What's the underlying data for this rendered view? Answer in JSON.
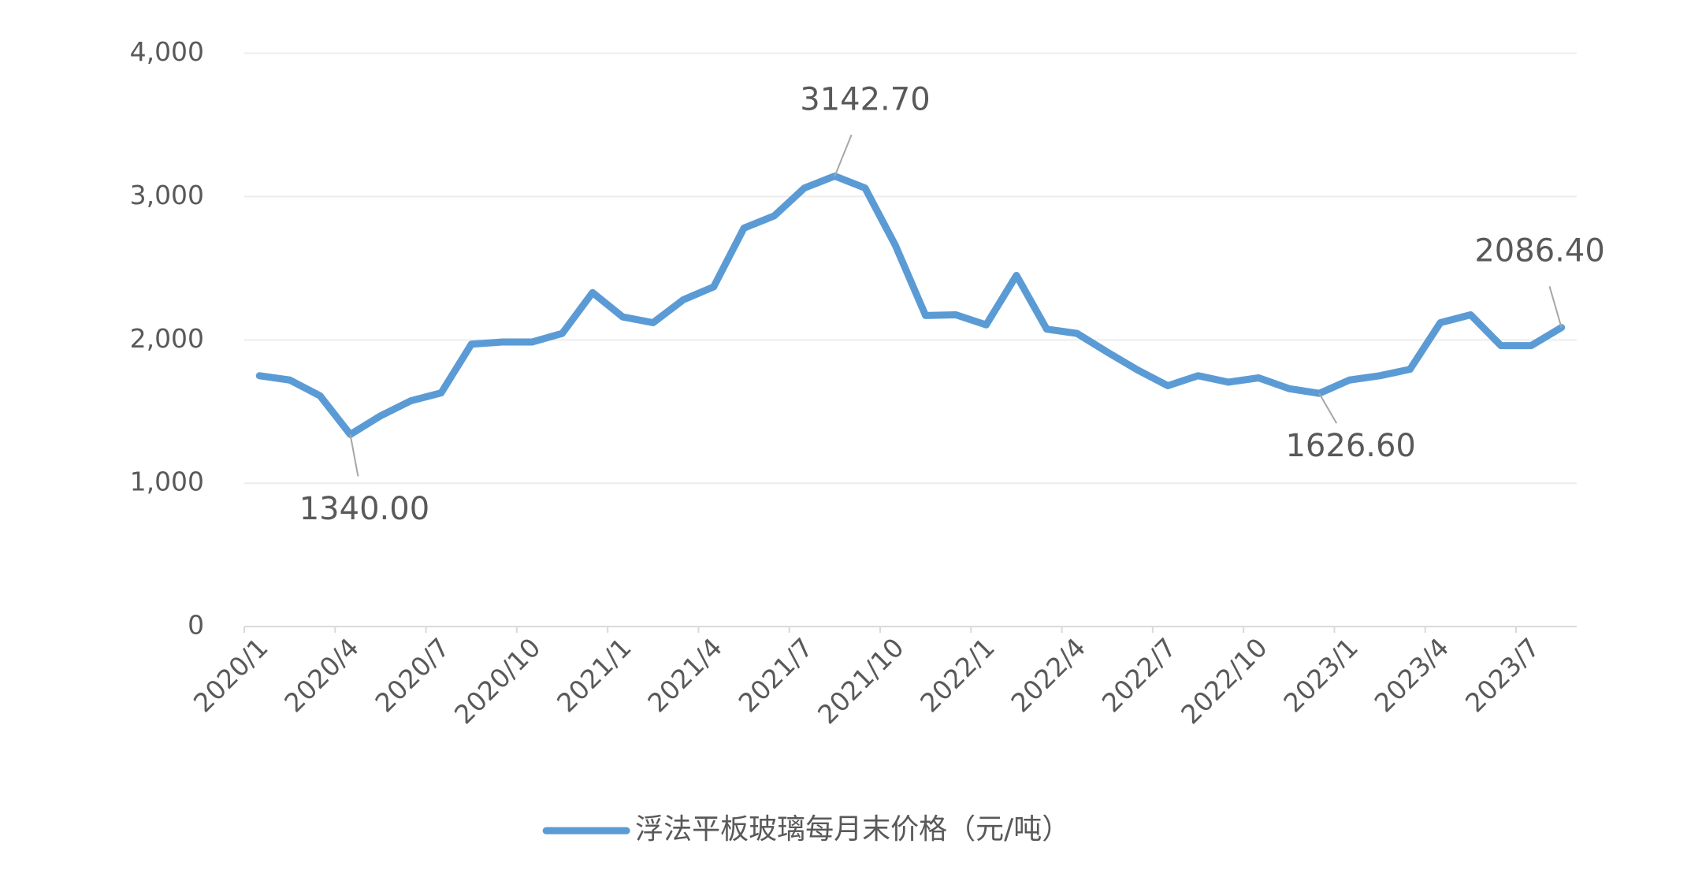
{
  "chart_data": {
    "type": "line",
    "categories": [
      "2020/1",
      null,
      null,
      "2020/4",
      null,
      null,
      "2020/7",
      null,
      null,
      "2020/10",
      null,
      null,
      "2021/1",
      null,
      null,
      "2021/4",
      null,
      null,
      "2021/7",
      null,
      null,
      "2021/10",
      null,
      null,
      "2022/1",
      null,
      null,
      "2022/4",
      null,
      null,
      "2022/7",
      null,
      null,
      "2022/10",
      null,
      null,
      "2023/1",
      null,
      null,
      "2023/4",
      null,
      null,
      "2023/7",
      null
    ],
    "series": [
      {
        "name": "浮法平板玻璃每月末价格（元/吨）",
        "color": "#5b9bd5",
        "values": [
          1750,
          1720,
          1610,
          1340,
          1470,
          1575,
          1630,
          1970,
          1985,
          1985,
          2045,
          2330,
          2160,
          2120,
          2280,
          2370,
          2780,
          2865,
          3060,
          3142.7,
          3060,
          2660,
          2170,
          2175,
          2105,
          2450,
          2075,
          2045,
          1915,
          1790,
          1680,
          1750,
          1705,
          1735,
          1660,
          1626.6,
          1720,
          1750,
          1795,
          2120,
          2175,
          1960,
          1960,
          2086.4
        ],
        "value_labels": [
          null,
          null,
          null,
          "1340.00",
          null,
          null,
          null,
          null,
          null,
          null,
          null,
          null,
          null,
          null,
          null,
          null,
          null,
          null,
          null,
          "3142.70",
          null,
          null,
          null,
          null,
          null,
          null,
          null,
          null,
          null,
          null,
          null,
          null,
          null,
          null,
          null,
          "1626.60",
          null,
          null,
          null,
          null,
          null,
          null,
          null,
          "2086.40"
        ]
      }
    ],
    "ylim": [
      0,
      4000
    ],
    "yticks": [
      0,
      {
        "value": 1000,
        "label": "1,000"
      },
      {
        "value": 2000,
        "label": "2,000"
      },
      {
        "value": 3000,
        "label": "3,000"
      },
      {
        "value": 4000,
        "label": "4,000"
      }
    ],
    "grid": true,
    "legend": "bottom"
  }
}
